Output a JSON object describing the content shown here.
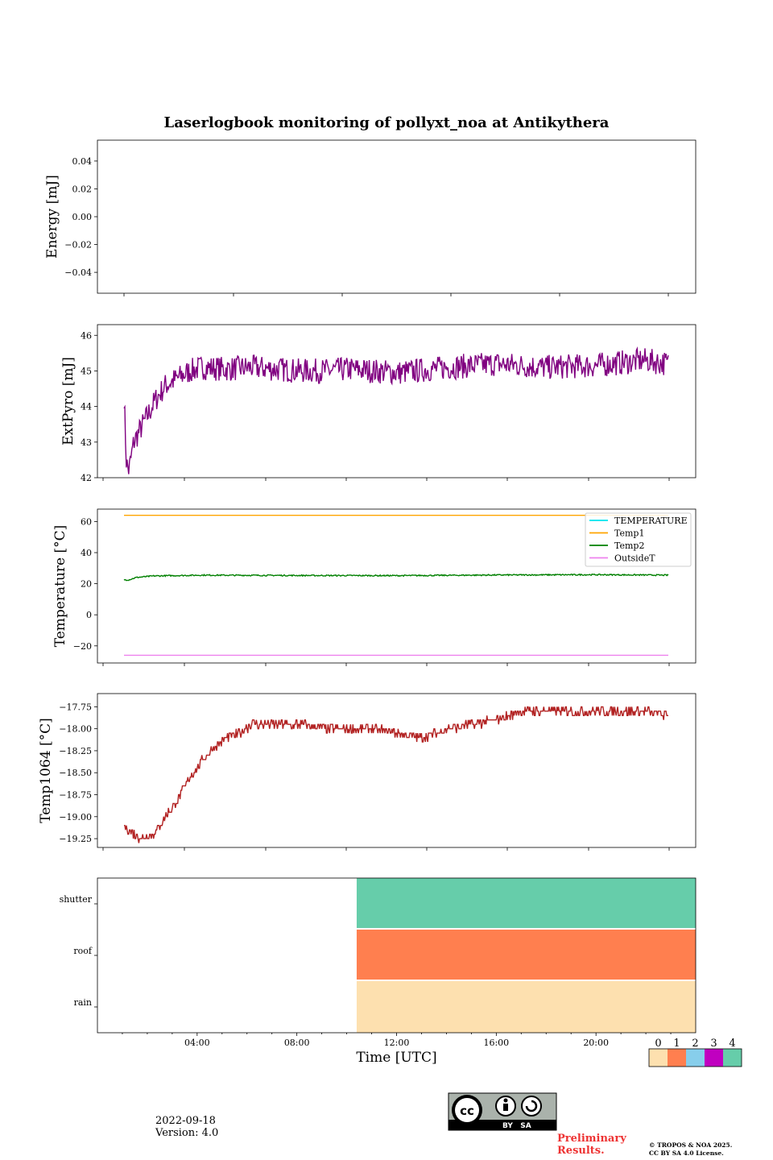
{
  "title": "Laserlogbook monitoring of pollyxt_noa at Antikythera",
  "footer": {
    "date": "2022-09-18",
    "version": "Version: 4.0",
    "preliminary_line1": "Preliminary",
    "preliminary_line2": "Results.",
    "copyright_line1": "© TROPOS & NOA 2025.",
    "copyright_line2": "CC BY SA 4.0 License.",
    "license_badge_text": "BY   SA"
  },
  "colors": {
    "extpyro": "#800080",
    "temperature": "#00e5ee",
    "temp1": "#ffa500",
    "temp2": "#008000",
    "outsideT": "#ee82ee",
    "temp1064": "#b22222",
    "status_0": "#fde0af",
    "status_1": "#ff7f4f",
    "status_2": "#87ceeb",
    "status_3": "#c000c0",
    "status_4": "#66cdaa"
  },
  "chart_data": [
    {
      "type": "line",
      "panel": "energy",
      "ylabel": "Energy [mJ]",
      "ylim": [
        -0.055,
        0.055
      ],
      "yticks": [
        0.04,
        0.02,
        0.0,
        -0.02,
        -0.04
      ],
      "ytick_labels": [
        "0.04",
        "0.02",
        "0.00",
        "−0.02",
        "−0.04"
      ],
      "xticks_hours": [
        1,
        5,
        9,
        13,
        17,
        21
      ],
      "series": []
    },
    {
      "type": "line",
      "panel": "extpyro",
      "ylabel": "ExtPyro [mJ]",
      "ylim": [
        42,
        46.3
      ],
      "yticks": [
        42,
        43,
        44,
        45,
        46
      ],
      "ytick_labels": [
        "42",
        "43",
        "44",
        "45",
        "46"
      ],
      "xticks_hours": [
        0,
        3,
        6,
        9,
        12,
        15,
        18,
        21
      ],
      "series": [
        {
          "color_key": "extpyro",
          "x_hours": [
            0.8,
            0.9,
            1.0,
            1.2,
            1.5,
            1.8,
            2.1,
            2.5,
            3.0,
            3.5,
            4.0,
            5.0,
            6.0,
            8.0,
            9.0,
            10.0,
            12.0,
            14.0,
            16.0,
            18.0,
            20.0,
            22.0,
            23.0
          ],
          "values": [
            44.3,
            42.4,
            42.2,
            43.0,
            43.4,
            43.8,
            44.2,
            44.6,
            44.8,
            45.0,
            45.1,
            45.05,
            45.1,
            45.0,
            45.0,
            45.05,
            44.95,
            45.1,
            45.2,
            45.1,
            45.15,
            45.3,
            45.2
          ],
          "noise": 0.35
        }
      ]
    },
    {
      "type": "line",
      "panel": "temperature",
      "ylabel": "Temperature [°C]",
      "ylim": [
        -31,
        68
      ],
      "yticks": [
        60,
        40,
        20,
        0,
        -20
      ],
      "ytick_labels": [
        "60",
        "40",
        "20",
        "0",
        "−20"
      ],
      "xticks_hours": [
        0,
        3,
        6,
        9,
        12,
        15,
        18,
        21
      ],
      "legend_position": "upper right",
      "series": [
        {
          "name": "TEMPERATURE",
          "color_key": "temperature",
          "x_hours": [],
          "values": []
        },
        {
          "name": "Temp1",
          "color_key": "temp1",
          "x_hours": [
            0.8,
            23.0
          ],
          "values": [
            64.0,
            64.0
          ]
        },
        {
          "name": "Temp2",
          "color_key": "temp2",
          "x_hours": [
            0.8,
            1.0,
            1.3,
            2.0,
            4.0,
            8.0,
            12.0,
            16.0,
            20.0,
            23.0
          ],
          "values": [
            22.5,
            22.5,
            24.0,
            25.0,
            25.5,
            25.3,
            25.2,
            25.6,
            25.8,
            25.5
          ],
          "noise": 0.4
        },
        {
          "name": "OutsideT",
          "color_key": "outsideT",
          "x_hours": [
            0.8,
            23.0
          ],
          "values": [
            -26.0,
            -26.0
          ]
        }
      ]
    },
    {
      "type": "line",
      "panel": "temp1064",
      "ylabel": "Temp1064 [°C]",
      "ylim": [
        -19.35,
        -17.6
      ],
      "yticks": [
        -17.75,
        -18.0,
        -18.25,
        -18.5,
        -18.75,
        -19.0,
        -19.25
      ],
      "ytick_labels": [
        "−17.75",
        "−18.00",
        "−18.25",
        "−18.50",
        "−18.75",
        "−19.00",
        "−19.25"
      ],
      "xticks_hours": [
        0,
        3,
        6,
        9,
        12,
        15,
        18,
        21
      ],
      "series": [
        {
          "color_key": "temp1064",
          "x_hours": [
            0.8,
            1.0,
            1.5,
            2.0,
            2.5,
            3.0,
            3.5,
            4.0,
            4.5,
            5.0,
            5.5,
            6.0,
            7.0,
            8.0,
            9.0,
            10.0,
            11.0,
            12.0,
            13.0,
            14.0,
            15.0,
            16.0,
            17.0,
            18.0,
            19.0,
            20.0,
            21.0,
            22.0,
            23.0
          ],
          "values": [
            -19.1,
            -19.15,
            -19.25,
            -19.2,
            -19.0,
            -18.8,
            -18.55,
            -18.35,
            -18.2,
            -18.1,
            -18.05,
            -17.95,
            -17.95,
            -17.95,
            -18.0,
            -18.0,
            -18.0,
            -18.05,
            -18.1,
            -18.0,
            -17.95,
            -17.9,
            -17.8,
            -17.8,
            -17.8,
            -17.8,
            -17.8,
            -17.8,
            -17.85
          ],
          "step": 0.05,
          "noise": 0.05
        }
      ]
    },
    {
      "type": "heatmap",
      "panel": "status",
      "rows": [
        "shutter",
        "roof",
        "rain"
      ],
      "xlabel": "Time [UTC]",
      "xlim_hours": [
        0,
        24
      ],
      "xticks_hours": [
        4,
        8,
        12,
        16,
        20
      ],
      "xtick_labels": [
        "04:00",
        "08:00",
        "12:00",
        "16:00",
        "20:00"
      ],
      "start_hour": 10.4,
      "end_hour": 24,
      "row_status": {
        "shutter": 4,
        "roof": 1,
        "rain": 0
      },
      "colorbar": {
        "ticks": [
          "0",
          "1",
          "2",
          "3",
          "4"
        ],
        "color_keys": [
          "status_0",
          "status_1",
          "status_2",
          "status_3",
          "status_4"
        ]
      }
    }
  ]
}
